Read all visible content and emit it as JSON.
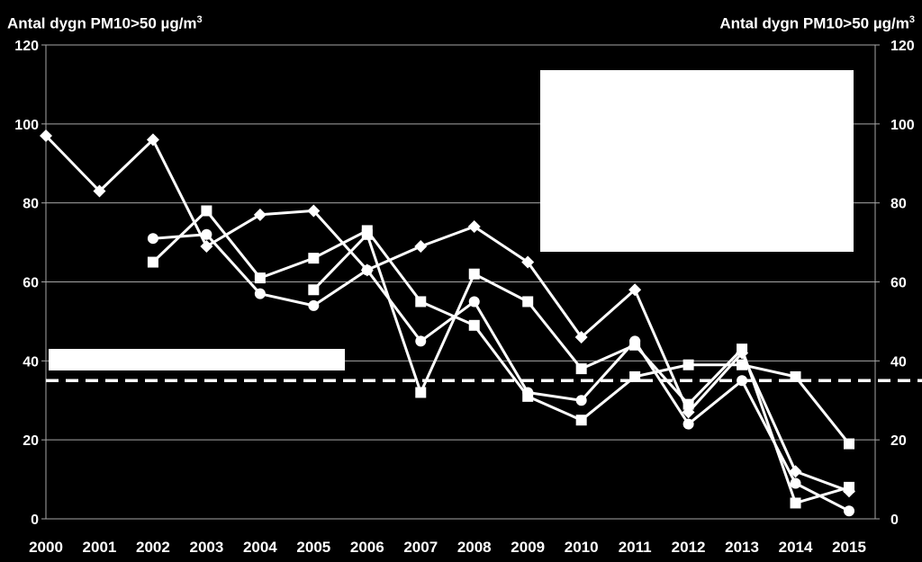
{
  "chart_data": {
    "type": "line",
    "ylabel_left": "Antal dygn PM10>50 µg/m",
    "ylabel_right": "Antal dygn PM10>50 µg/m",
    "ylabel_superscript": "3",
    "ylim": [
      0,
      120
    ],
    "yticks": [
      0,
      20,
      40,
      60,
      80,
      100,
      120
    ],
    "categories": [
      "2000",
      "2001",
      "2002",
      "2003",
      "2004",
      "2005",
      "2006",
      "2007",
      "2008",
      "2009",
      "2010",
      "2011",
      "2012",
      "2013",
      "2014",
      "2015"
    ],
    "grid": true,
    "threshold": 35,
    "colors": {
      "background": "#000000",
      "line": "#ffffff",
      "grid": "#a6a6a6"
    },
    "series": [
      {
        "marker": "diamond",
        "values": [
          97,
          83,
          96,
          69,
          77,
          78,
          63,
          69,
          74,
          65,
          46,
          58,
          27,
          42,
          12,
          7
        ]
      },
      {
        "marker": "square",
        "values": [
          null,
          null,
          65,
          78,
          61,
          66,
          73,
          55,
          49,
          31,
          25,
          36,
          39,
          39,
          36,
          19
        ]
      },
      {
        "marker": "circle",
        "values": [
          null,
          null,
          71,
          72,
          57,
          54,
          63,
          45,
          55,
          32,
          30,
          45,
          24,
          35,
          9,
          2
        ]
      },
      {
        "marker": "square",
        "values": [
          null,
          null,
          null,
          null,
          null,
          58,
          72,
          32,
          62,
          55,
          38,
          44,
          29,
          43,
          4,
          8
        ]
      }
    ]
  }
}
